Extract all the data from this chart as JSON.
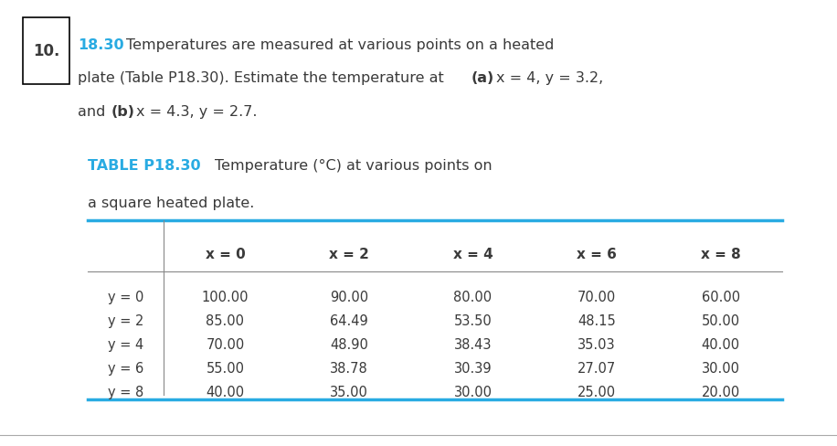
{
  "problem_number": "10.",
  "section_ref": "18.30",
  "col_headers": [
    "x = 0",
    "x = 2",
    "x = 4",
    "x = 6",
    "x = 8"
  ],
  "row_headers": [
    "y = 0",
    "y = 2",
    "y = 4",
    "y = 6",
    "y = 8"
  ],
  "table_data": [
    [
      "100.00",
      "90.00",
      "80.00",
      "70.00",
      "60.00"
    ],
    [
      "85.00",
      "64.49",
      "53.50",
      "48.15",
      "50.00"
    ],
    [
      "70.00",
      "48.90",
      "38.43",
      "35.03",
      "40.00"
    ],
    [
      "55.00",
      "38.78",
      "30.39",
      "27.07",
      "30.00"
    ],
    [
      "40.00",
      "35.00",
      "30.00",
      "25.00",
      "20.00"
    ]
  ],
  "blue_color": "#29ABE2",
  "dark_color": "#3a3a3a",
  "bg_color": "#FFFFFF"
}
